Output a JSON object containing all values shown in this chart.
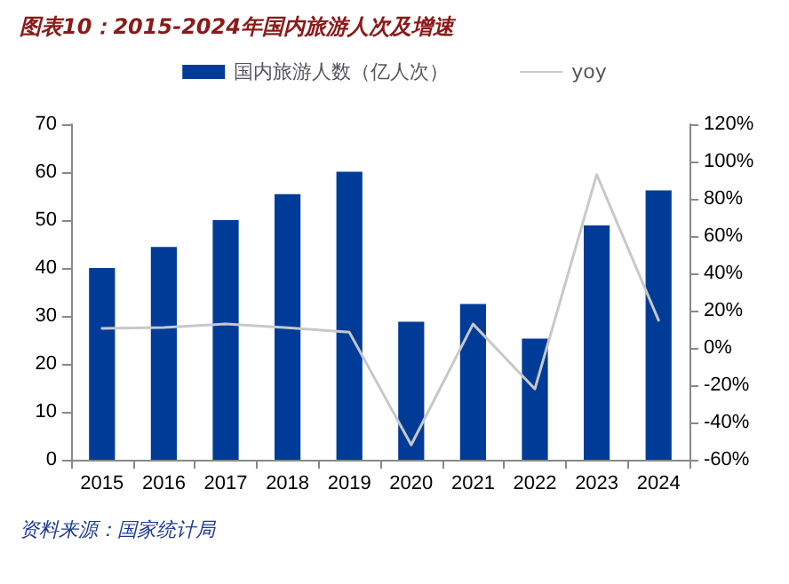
{
  "chart_data": {
    "type": "bar",
    "title": "图表10：2015-2024年国内旅游人次及增速",
    "categories": [
      "2015",
      "2016",
      "2017",
      "2018",
      "2019",
      "2020",
      "2021",
      "2022",
      "2023",
      "2024"
    ],
    "series": [
      {
        "name": "国内旅游人数（亿人次）",
        "color": "#003c97",
        "values": [
          40.0,
          44.4,
          50.0,
          55.4,
          60.1,
          28.8,
          32.5,
          25.3,
          48.9,
          56.2
        ]
      },
      {
        "name": "yoy",
        "type": "line",
        "axis": "y2",
        "color": "#c8c8c8",
        "values": [
          10.5,
          11,
          12.8,
          10.8,
          8.4,
          -52,
          12.8,
          -22,
          93,
          14.8
        ]
      }
    ],
    "ylim": [
      0,
      70
    ],
    "yticks": [
      0,
      10,
      20,
      30,
      40,
      50,
      60,
      70
    ],
    "y2lim": [
      -60,
      120
    ],
    "y2ticks": [
      {
        "value": -60,
        "label": "-60%"
      },
      {
        "value": -40,
        "label": "-40%"
      },
      {
        "value": -20,
        "label": "-20%"
      },
      {
        "value": 0,
        "label": "0%"
      },
      {
        "value": 20,
        "label": "20%"
      },
      {
        "value": 40,
        "label": "40%"
      },
      {
        "value": 60,
        "label": "60%"
      },
      {
        "value": 80,
        "label": "80%"
      },
      {
        "value": 100,
        "label": "100%"
      },
      {
        "value": 120,
        "label": "120%"
      }
    ],
    "grid": false,
    "legend": "top",
    "marker": "none",
    "annotations": [
      "资料来源：国家统计局"
    ]
  }
}
